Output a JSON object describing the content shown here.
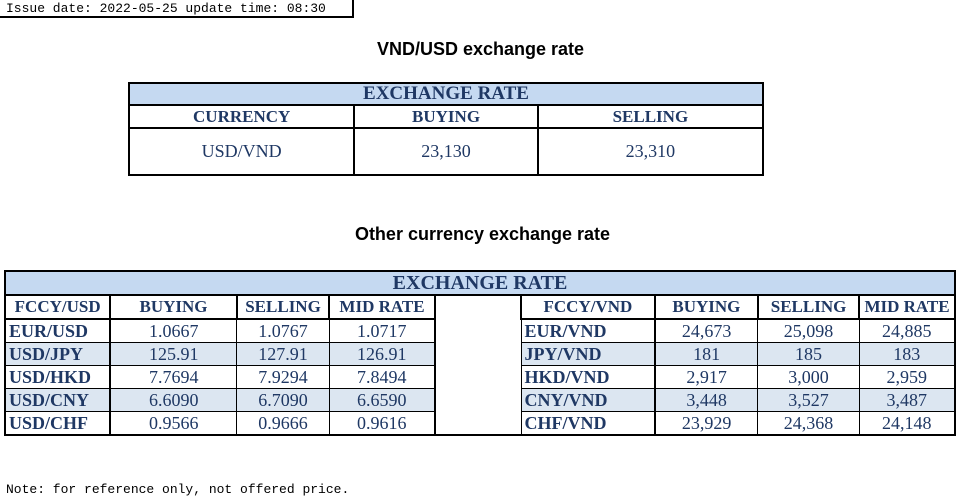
{
  "issue": {
    "text": "Issue date: 2022-05-25 update time: 08:30"
  },
  "vnd_usd": {
    "title": "VND/USD exchange rate",
    "table_header": "EXCHANGE RATE",
    "columns": [
      "CURRENCY",
      "BUYING",
      "SELLING"
    ],
    "row": {
      "currency": "USD/VND",
      "buying": "23,130",
      "selling": "23,310"
    }
  },
  "other": {
    "title": "Other currency exchange rate",
    "table_header": "EXCHANGE  RATE",
    "left_columns": [
      "FCCY/USD",
      "BUYING",
      "SELLING",
      "MID RATE"
    ],
    "right_columns": [
      "FCCY/VND",
      "BUYING",
      "SELLING",
      "MID RATE"
    ],
    "rows": [
      {
        "left": [
          "EUR/USD",
          "1.0667",
          "1.0767",
          "1.0717"
        ],
        "right": [
          "EUR/VND",
          "24,673",
          "25,098",
          "24,885"
        ]
      },
      {
        "left": [
          "USD/JPY",
          "125.91",
          "127.91",
          "126.91"
        ],
        "right": [
          "JPY/VND",
          "181",
          "185",
          "183"
        ]
      },
      {
        "left": [
          "USD/HKD",
          "7.7694",
          "7.9294",
          "7.8494"
        ],
        "right": [
          "HKD/VND",
          "2,917",
          "3,000",
          "2,959"
        ]
      },
      {
        "left": [
          "USD/CNY",
          "6.6090",
          "6.7090",
          "6.6590"
        ],
        "right": [
          "CNY/VND",
          "3,448",
          "3,527",
          "3,487"
        ]
      },
      {
        "left": [
          "USD/CHF",
          "0.9566",
          "0.9666",
          "0.9616"
        ],
        "right": [
          "CHF/VND",
          "23,929",
          "24,368",
          "24,148"
        ]
      }
    ]
  },
  "footer": {
    "note": "Note: for reference only, not offered price."
  }
}
